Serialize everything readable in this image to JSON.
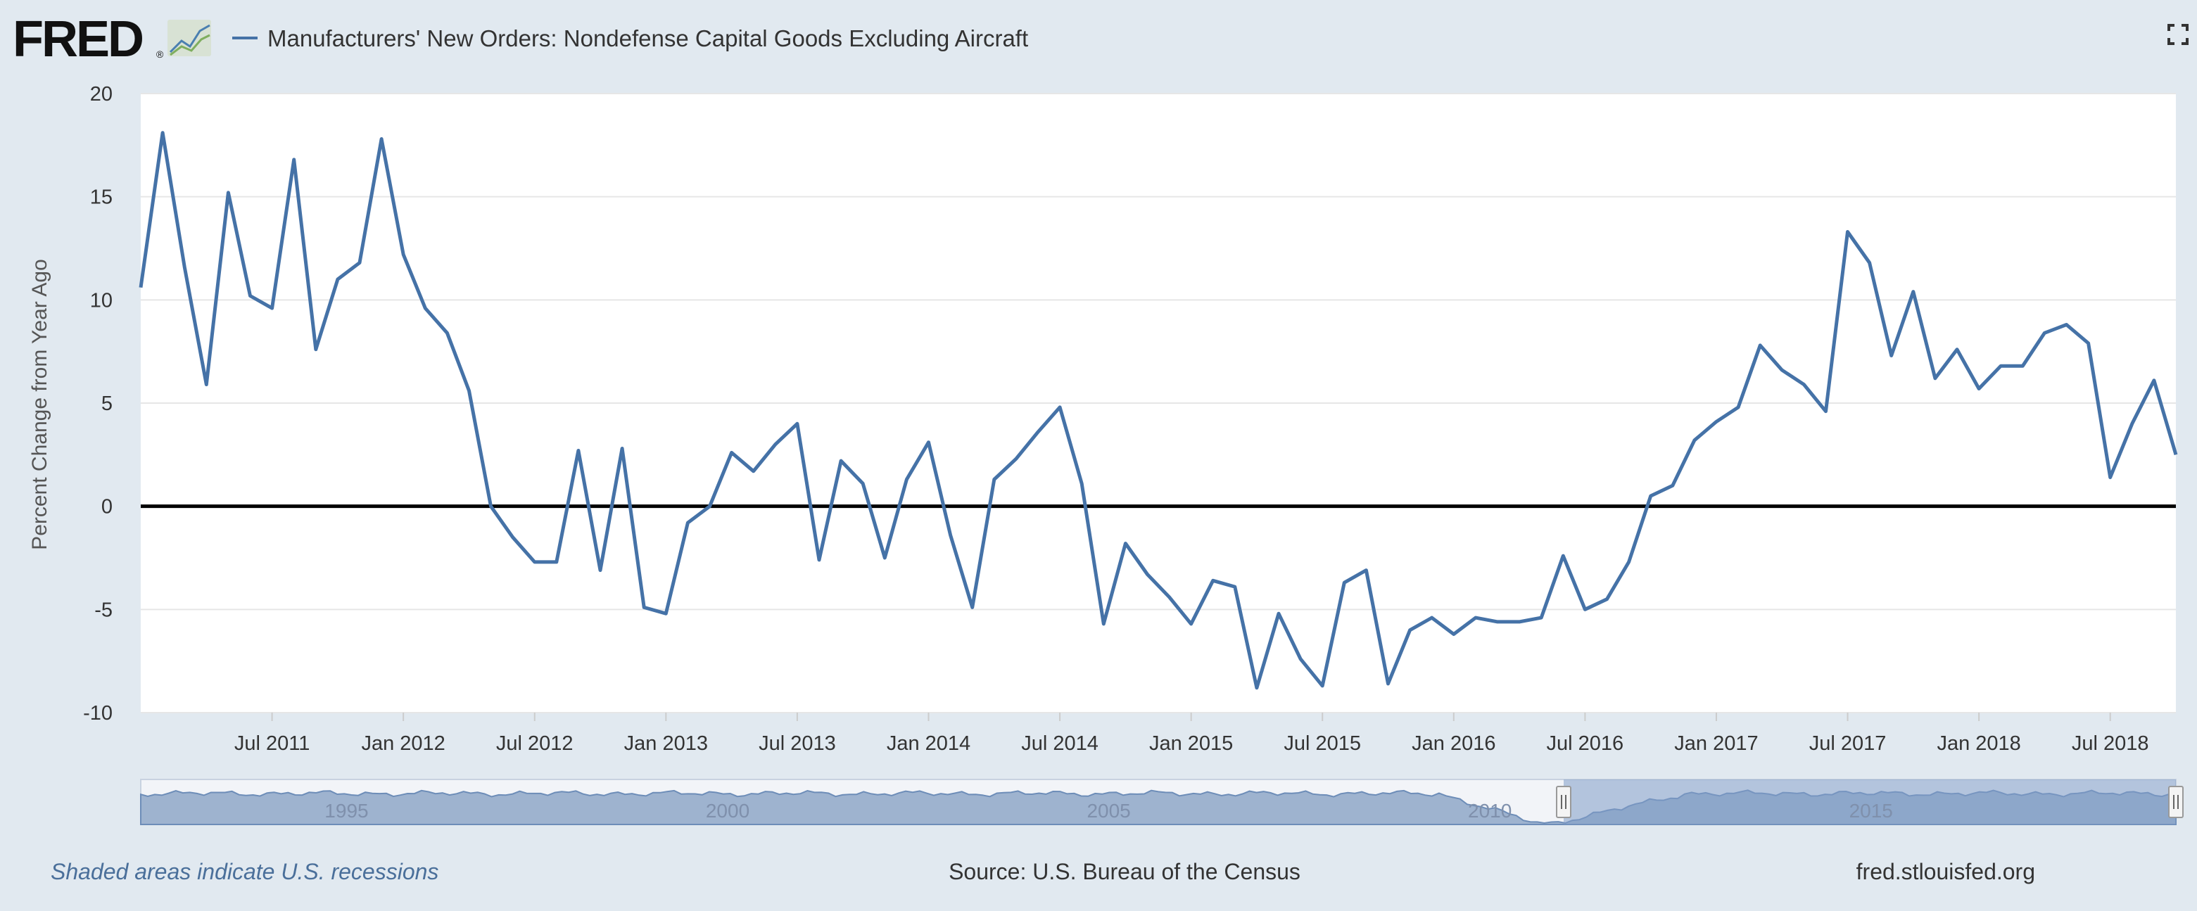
{
  "header": {
    "logo_text": "FRED",
    "legend_label": "Manufacturers' New Orders: Nondefense Capital Goods Excluding Aircraft",
    "fullscreen_icon": "expand-icon"
  },
  "colors": {
    "page_bg": "#e1e9f0",
    "plot_bg": "#ffffff",
    "series": "#4572a7",
    "zero_line": "#000000",
    "navigator_fill": "#9eb3cf",
    "navigator_selected": "#8ba4c9"
  },
  "chart_data": {
    "type": "line",
    "title": "Manufacturers' New Orders: Nondefense Capital Goods Excluding Aircraft",
    "ylabel": "Percent Change from Year Ago",
    "xlabel": "",
    "ylim": [
      -10,
      20
    ],
    "yticks": [
      "20",
      "15",
      "10",
      "5",
      "0",
      "-5",
      "-10"
    ],
    "xticks": [
      "Jul 2011",
      "Jan 2012",
      "Jul 2012",
      "Jan 2013",
      "Jul 2013",
      "Jan 2014",
      "Jul 2014",
      "Jan 2015",
      "Jul 2015",
      "Jan 2016",
      "Jul 2016",
      "Jan 2017",
      "Jul 2017",
      "Jan 2018",
      "Jul 2018"
    ],
    "x_start": "2011-01",
    "frequency": "monthly",
    "series": [
      {
        "name": "Manufacturers' New Orders: Nondefense Capital Goods Excluding Aircraft",
        "values": [
          10.6,
          18.1,
          11.6,
          5.9,
          15.2,
          10.2,
          9.6,
          16.8,
          7.6,
          11.0,
          11.8,
          17.8,
          12.2,
          9.6,
          8.4,
          5.6,
          0.0,
          -1.5,
          -2.7,
          -2.7,
          2.7,
          -3.1,
          2.8,
          -4.9,
          -5.2,
          -0.8,
          0.0,
          2.6,
          1.7,
          3.0,
          4.0,
          -2.6,
          2.2,
          1.1,
          -2.5,
          1.3,
          3.1,
          -1.4,
          -4.9,
          1.3,
          2.3,
          3.6,
          4.8,
          1.1,
          -5.7,
          -1.8,
          -3.3,
          -4.4,
          -5.7,
          -3.6,
          -3.9,
          -8.8,
          -5.2,
          -7.4,
          -8.7,
          -3.7,
          -3.1,
          -8.6,
          -6.0,
          -5.4,
          -6.2,
          -5.4,
          -5.6,
          -5.6,
          -5.4,
          -2.4,
          -5.0,
          -4.5,
          -2.7,
          0.5,
          1.0,
          3.2,
          4.1,
          4.8,
          7.8,
          6.6,
          5.9,
          4.6,
          13.3,
          11.8,
          7.3,
          10.4,
          6.2,
          7.6,
          5.7,
          6.8,
          6.8,
          8.4,
          8.8,
          7.9,
          1.4,
          4.0,
          6.1,
          2.5
        ]
      }
    ],
    "navigator_labels": [
      "1995",
      "2000",
      "2005",
      "2010",
      "2015"
    ]
  },
  "footer": {
    "recession_note": "Shaded areas indicate U.S. recessions",
    "source": "Source: U.S. Bureau of the Census",
    "url": "fred.stlouisfed.org"
  }
}
